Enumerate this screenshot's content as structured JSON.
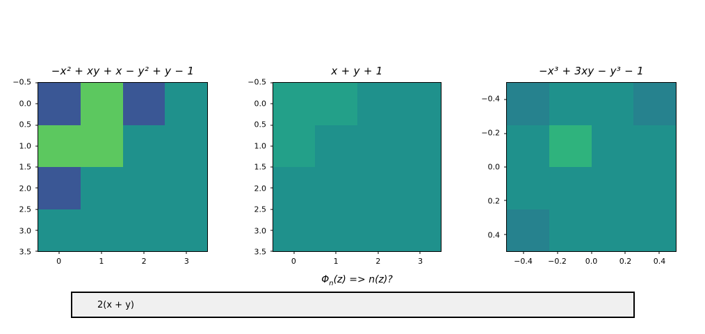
{
  "figure": {
    "background": "#ffffff"
  },
  "palette": {
    "neg_one_blue": "#3a5795",
    "zero_teal": "#1f918c",
    "pos_one_green": "#5cc85f",
    "pos_one_light_teal": "#23a089",
    "neg_one_dark_teal": "#26828e",
    "pos_three_green": "#2fb37d"
  },
  "chart_data": [
    {
      "type": "heatmap",
      "title": "−x² + xy + x − y² + y − 1",
      "x_min": -0.5,
      "x_max": 3.5,
      "y_min": -0.5,
      "y_max": 3.5,
      "x_tick_values": [
        0,
        1,
        2,
        3
      ],
      "x_tick_labels": [
        "0",
        "1",
        "2",
        "3"
      ],
      "y_tick_values": [
        -0.5,
        0.0,
        0.5,
        1.0,
        1.5,
        2.0,
        2.5,
        3.0,
        3.5
      ],
      "y_tick_labels": [
        "−0.5",
        "0.0",
        "0.5",
        "1.0",
        "1.5",
        "2.0",
        "2.5",
        "3.0",
        "3.5"
      ],
      "values": [
        [
          -1,
          1,
          -1,
          0
        ],
        [
          1,
          1,
          0,
          0
        ],
        [
          -1,
          0,
          0,
          0
        ],
        [
          0,
          0,
          0,
          0
        ]
      ],
      "cell_colors": [
        [
          "#3a5795",
          "#5cc85f",
          "#3a5795",
          "#1f918c"
        ],
        [
          "#5cc85f",
          "#5cc85f",
          "#1f918c",
          "#1f918c"
        ],
        [
          "#3a5795",
          "#1f918c",
          "#1f918c",
          "#1f918c"
        ],
        [
          "#1f918c",
          "#1f918c",
          "#1f918c",
          "#1f918c"
        ]
      ]
    },
    {
      "type": "heatmap",
      "title": "x + y + 1",
      "x_min": -0.5,
      "x_max": 3.5,
      "y_min": -0.5,
      "y_max": 3.5,
      "x_tick_values": [
        0,
        1,
        2,
        3
      ],
      "x_tick_labels": [
        "0",
        "1",
        "2",
        "3"
      ],
      "y_tick_values": [
        -0.5,
        0.0,
        0.5,
        1.0,
        1.5,
        2.0,
        2.5,
        3.0,
        3.5
      ],
      "y_tick_labels": [
        "−0.5",
        "0.0",
        "0.5",
        "1.0",
        "1.5",
        "2.0",
        "2.5",
        "3.0",
        "3.5"
      ],
      "values": [
        [
          1,
          1,
          0,
          0
        ],
        [
          1,
          0,
          0,
          0
        ],
        [
          0,
          0,
          0,
          0
        ],
        [
          0,
          0,
          0,
          0
        ]
      ],
      "cell_colors": [
        [
          "#23a089",
          "#23a089",
          "#1f918c",
          "#1f918c"
        ],
        [
          "#23a089",
          "#1f918c",
          "#1f918c",
          "#1f918c"
        ],
        [
          "#1f918c",
          "#1f918c",
          "#1f918c",
          "#1f918c"
        ],
        [
          "#1f918c",
          "#1f918c",
          "#1f918c",
          "#1f918c"
        ]
      ],
      "xlabel": {
        "prefix": "Φ",
        "sub": "n",
        "suffix": "(z) => n(z)?"
      }
    },
    {
      "type": "heatmap",
      "title": "−x³ + 3xy − y³ − 1",
      "x_min": -0.5,
      "x_max": 0.5,
      "y_min": -0.5,
      "y_max": 0.5,
      "x_tick_values": [
        -0.4,
        -0.2,
        0.0,
        0.2,
        0.4
      ],
      "x_tick_labels": [
        "−0.4",
        "−0.2",
        "0.0",
        "0.2",
        "0.4"
      ],
      "y_tick_values": [
        -0.4,
        -0.2,
        0.0,
        0.2,
        0.4
      ],
      "y_tick_labels": [
        "−0.4",
        "−0.2",
        "0.0",
        "0.2",
        "0.4"
      ],
      "values": [
        [
          -1,
          0,
          0,
          -1
        ],
        [
          0,
          3,
          0,
          0
        ],
        [
          0,
          0,
          0,
          0
        ],
        [
          -1,
          0,
          0,
          0
        ]
      ],
      "cell_colors": [
        [
          "#26828e",
          "#1f918c",
          "#1f918c",
          "#26828e"
        ],
        [
          "#1f918c",
          "#2fb37d",
          "#1f918c",
          "#1f918c"
        ],
        [
          "#1f918c",
          "#1f918c",
          "#1f918c",
          "#1f918c"
        ],
        [
          "#26828e",
          "#1f918c",
          "#1f918c",
          "#1f918c"
        ]
      ]
    }
  ],
  "textbox": {
    "value": "2(x + y)",
    "fill": "#f0f0f0",
    "border_color": "#000000"
  }
}
